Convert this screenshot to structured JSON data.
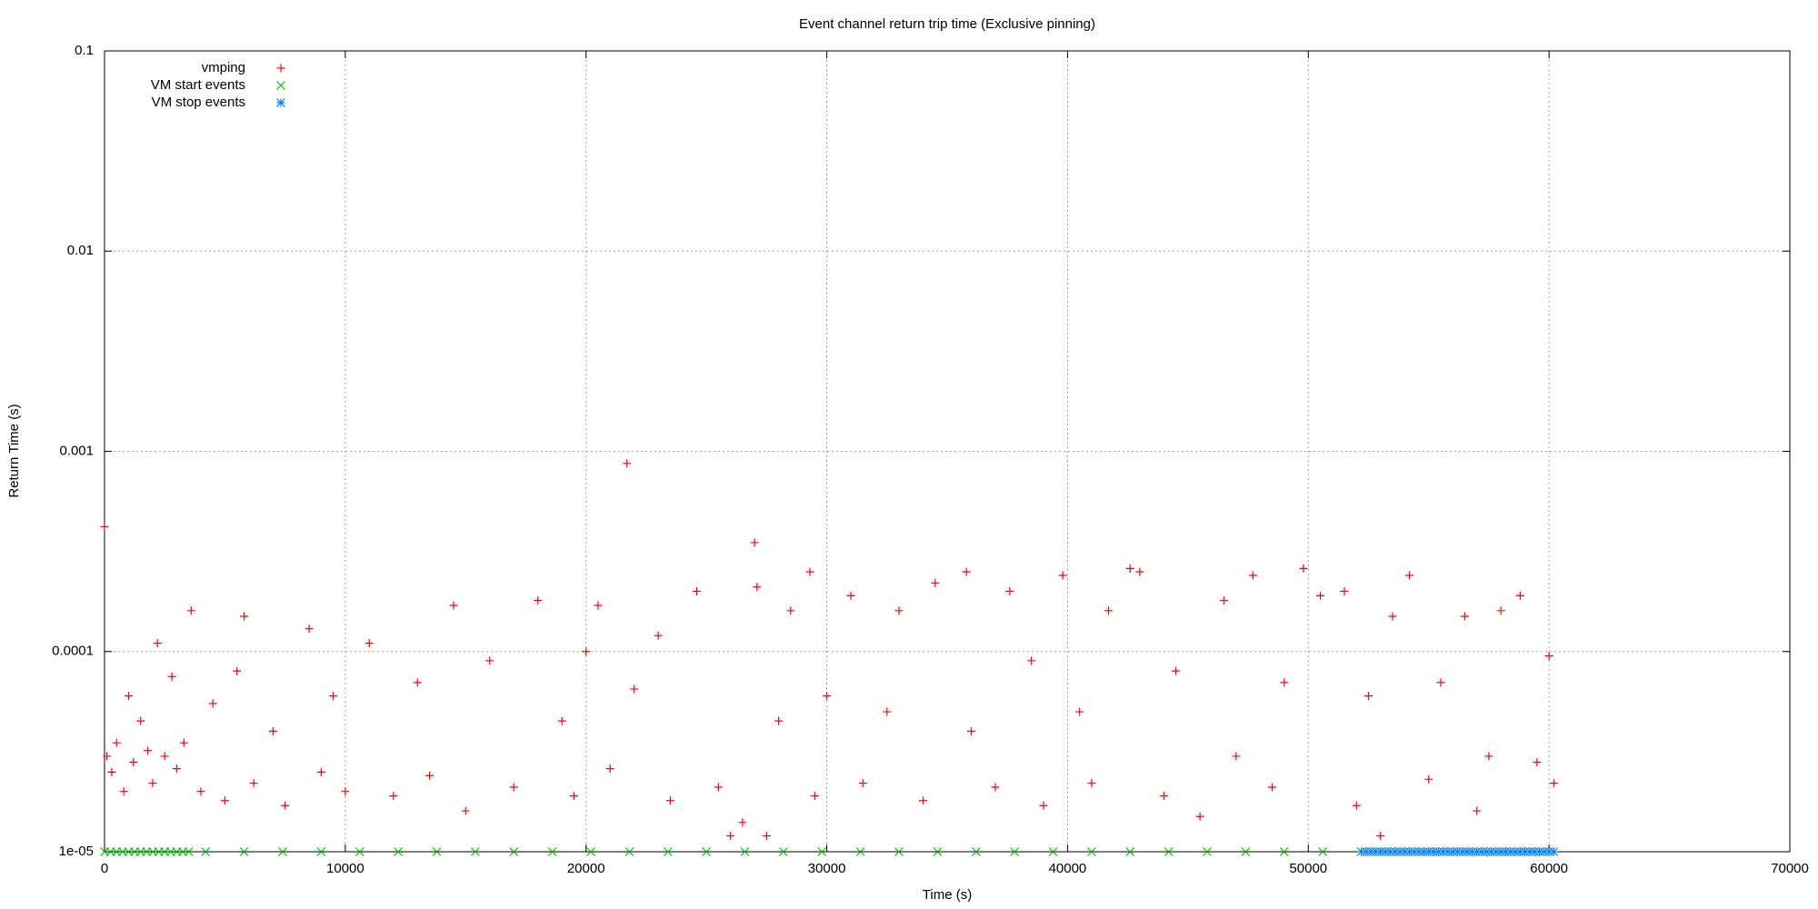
{
  "chart_data": {
    "type": "scatter",
    "title": "Event channel return trip time (Exclusive pinning)",
    "xlabel": "Time (s)",
    "ylabel": "Return Time (s)",
    "xlim": [
      0,
      70000
    ],
    "xticks": [
      0,
      10000,
      20000,
      30000,
      40000,
      50000,
      60000,
      70000
    ],
    "ylim": [
      1e-05,
      0.1
    ],
    "yscale": "log",
    "yticks": [
      {
        "value": 1e-05,
        "label": "1e-05"
      },
      0.0001,
      0.001,
      0.01,
      0.1
    ],
    "grid": true,
    "legend": "top-left",
    "series": [
      {
        "name": "vmping",
        "color": "#ff0000",
        "marker": "plus",
        "x": [
          0,
          100,
          300,
          500,
          800,
          1000,
          1200,
          1500,
          1800,
          2000,
          2200,
          2500,
          2800,
          3000,
          3300,
          3600,
          4000,
          4500,
          5000,
          5500,
          5800,
          6200,
          7000,
          7500,
          8500,
          9000,
          9500,
          10000,
          11000,
          12000,
          13000,
          13500,
          14500,
          15000,
          16000,
          17000,
          18000,
          19000,
          19500,
          20000,
          20500,
          21000,
          21700,
          22000,
          23000,
          23500,
          24600,
          25500,
          26000,
          26500,
          27000,
          27100,
          27500,
          28000,
          28500,
          29300,
          29500,
          30000,
          31000,
          31500,
          32500,
          33000,
          34000,
          34500,
          35800,
          36000,
          37000,
          37600,
          38500,
          39000,
          39800,
          40500,
          41000,
          41700,
          42600,
          43000,
          44000,
          44500,
          45500,
          46500,
          47000,
          47700,
          48500,
          49000,
          49800,
          50500,
          51500,
          52000,
          52500,
          53000,
          53500,
          54200,
          55000,
          55500,
          56500,
          57000,
          57500,
          58000,
          58800,
          59500,
          60000,
          60200
        ],
        "values": [
          0.00042,
          3e-05,
          2.5e-05,
          3.5e-05,
          2e-05,
          6e-05,
          2.8e-05,
          4.5e-05,
          3.2e-05,
          2.2e-05,
          0.00011,
          3e-05,
          7.5e-05,
          2.6e-05,
          3.5e-05,
          0.00016,
          2e-05,
          5.5e-05,
          1.8e-05,
          8e-05,
          0.00015,
          2.2e-05,
          4e-05,
          1.7e-05,
          0.00013,
          2.5e-05,
          6e-05,
          2e-05,
          0.00011,
          1.9e-05,
          7e-05,
          2.4e-05,
          0.00017,
          1.6e-05,
          9e-05,
          2.1e-05,
          0.00018,
          4.5e-05,
          1.9e-05,
          0.0001,
          0.00017,
          2.6e-05,
          0.00087,
          6.5e-05,
          0.00012,
          1.8e-05,
          0.0002,
          2.1e-05,
          1.2e-05,
          1.4e-05,
          0.00035,
          0.00021,
          1.2e-05,
          4.5e-05,
          0.00016,
          0.00025,
          1.9e-05,
          6e-05,
          0.00019,
          2.2e-05,
          5e-05,
          0.00016,
          1.8e-05,
          0.00022,
          0.00025,
          4e-05,
          2.1e-05,
          0.0002,
          9e-05,
          1.7e-05,
          0.00024,
          5e-05,
          2.2e-05,
          0.00016,
          0.00026,
          0.00025,
          1.9e-05,
          8e-05,
          1.5e-05,
          0.00018,
          3e-05,
          0.00024,
          2.1e-05,
          7e-05,
          0.00026,
          0.00019,
          0.0002,
          1.7e-05,
          6e-05,
          1.2e-05,
          0.00015,
          0.00024,
          2.3e-05,
          7e-05,
          0.00015,
          1.6e-05,
          3e-05,
          0.00016,
          0.00019,
          2.8e-05,
          9.5e-05,
          2.2e-05
        ]
      },
      {
        "name": "VM start events",
        "color": "#00c000",
        "marker": "cross",
        "x": [
          0,
          250,
          500,
          750,
          1000,
          1250,
          1500,
          1750,
          2000,
          2250,
          2500,
          2750,
          3000,
          3250,
          3500,
          4200,
          5800,
          7400,
          9000,
          10600,
          12200,
          13800,
          15400,
          17000,
          18600,
          20200,
          21800,
          23400,
          25000,
          26600,
          28200,
          29800,
          31400,
          33000,
          34600,
          36200,
          37800,
          39400,
          41000,
          42600,
          44200,
          45800,
          47400,
          49000,
          50600
        ],
        "values": [
          1e-05,
          1e-05,
          1e-05,
          1e-05,
          1e-05,
          1e-05,
          1e-05,
          1e-05,
          1e-05,
          1e-05,
          1e-05,
          1e-05,
          1e-05,
          1e-05,
          1e-05,
          1e-05,
          1e-05,
          1e-05,
          1e-05,
          1e-05,
          1e-05,
          1e-05,
          1e-05,
          1e-05,
          1e-05,
          1e-05,
          1e-05,
          1e-05,
          1e-05,
          1e-05,
          1e-05,
          1e-05,
          1e-05,
          1e-05,
          1e-05,
          1e-05,
          1e-05,
          1e-05,
          1e-05,
          1e-05,
          1e-05,
          1e-05,
          1e-05,
          1e-05,
          1e-05
        ]
      },
      {
        "name": "VM stop events",
        "color": "#0080ff",
        "marker": "star",
        "x": [
          52200,
          52400,
          52600,
          52800,
          53000,
          53200,
          53400,
          53600,
          53800,
          54000,
          54200,
          54400,
          54600,
          54800,
          55000,
          55200,
          55400,
          55600,
          55800,
          56000,
          56200,
          56400,
          56600,
          56800,
          57000,
          57200,
          57400,
          57600,
          57800,
          58000,
          58200,
          58400,
          58600,
          58800,
          59000,
          59200,
          59400,
          59600,
          59800,
          60000,
          60200
        ],
        "values": [
          1e-05,
          1e-05,
          1e-05,
          1e-05,
          1e-05,
          1e-05,
          1e-05,
          1e-05,
          1e-05,
          1e-05,
          1e-05,
          1e-05,
          1e-05,
          1e-05,
          1e-05,
          1e-05,
          1e-05,
          1e-05,
          1e-05,
          1e-05,
          1e-05,
          1e-05,
          1e-05,
          1e-05,
          1e-05,
          1e-05,
          1e-05,
          1e-05,
          1e-05,
          1e-05,
          1e-05,
          1e-05,
          1e-05,
          1e-05,
          1e-05,
          1e-05,
          1e-05,
          1e-05,
          1e-05,
          1e-05,
          1e-05
        ]
      }
    ]
  }
}
